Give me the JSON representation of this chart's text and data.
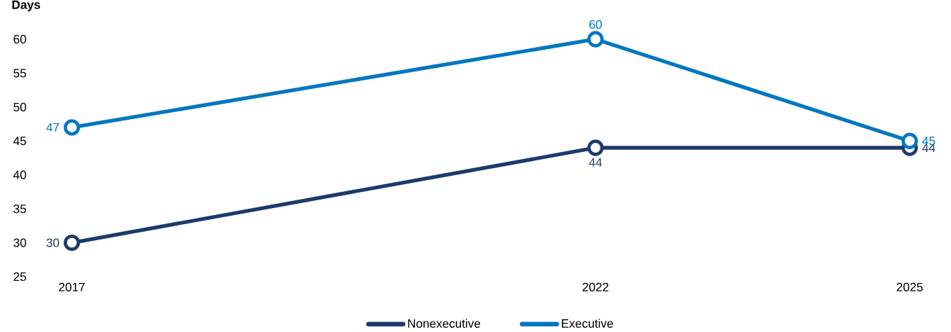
{
  "chart_data": {
    "type": "line",
    "ylabel": "Days",
    "x": [
      2017,
      2022,
      2025
    ],
    "series": [
      {
        "name": "Nonexecutive",
        "color": "#1e3a6b",
        "values": [
          30,
          44,
          44
        ]
      },
      {
        "name": "Executive",
        "color": "#0077c0",
        "values": [
          47,
          60,
          45
        ]
      }
    ],
    "xlim": [
      2017,
      2025
    ],
    "xticks": [
      2017,
      2022,
      2025
    ],
    "ylim": [
      25,
      60
    ],
    "yticks": [
      25,
      30,
      35,
      40,
      45,
      50,
      55,
      60
    ],
    "data_labels": true,
    "legend": "bottom",
    "marker": "circle",
    "line_style": "solid",
    "grid": false
  }
}
